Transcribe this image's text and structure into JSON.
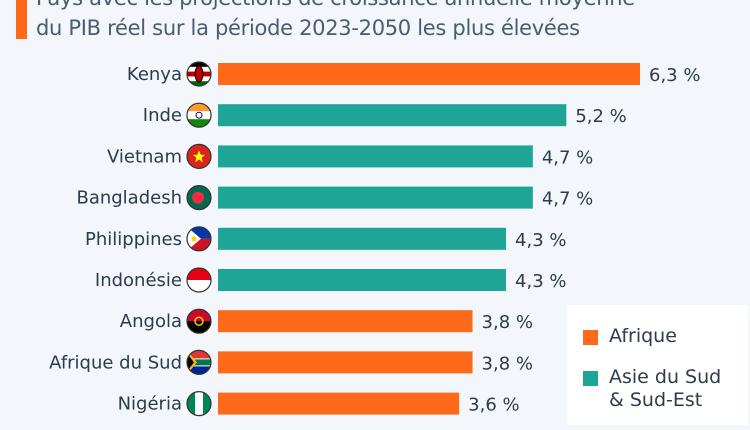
{
  "title_lines": [
    "Pays avec les projections de croissance annuelle moyenne",
    "du PIB réel sur la période 2023-2050 les plus élevées"
  ],
  "colors": {
    "Afrique": "#ff6a1a",
    "Asie du Sud & Sud-Est": "#1ea596",
    "accent": "#ff6a1a"
  },
  "legend": [
    {
      "label": "Afrique",
      "color": "#ff6a1a"
    },
    {
      "label": "Asie du Sud",
      "label2": "& Sud-Est",
      "color": "#1ea596"
    }
  ],
  "chart_data": {
    "type": "bar",
    "orientation": "horizontal",
    "title": "Pays avec les projections de croissance annuelle moyenne du PIB réel sur la période 2023-2050 les plus élevées",
    "categories": [
      "Kenya",
      "Inde",
      "Vietnam",
      "Bangladesh",
      "Philippines",
      "Indonésie",
      "Angola",
      "Afrique du Sud",
      "Nigéria"
    ],
    "values": [
      6.3,
      5.2,
      4.7,
      4.7,
      4.3,
      4.3,
      3.8,
      3.8,
      3.6
    ],
    "value_labels": [
      "6,3 %",
      "5,2 %",
      "4,7 %",
      "4,7 %",
      "4,3 %",
      "4,3 %",
      "3,8 %",
      "3,8 %",
      "3,6 %"
    ],
    "groups": [
      "Afrique",
      "Asie du Sud & Sud-Est",
      "Asie du Sud & Sud-Est",
      "Asie du Sud & Sud-Est",
      "Asie du Sud & Sud-Est",
      "Asie du Sud & Sud-Est",
      "Afrique",
      "Afrique",
      "Afrique"
    ],
    "flags": [
      "kenya-flag-icon",
      "india-flag-icon",
      "vietnam-flag-icon",
      "bangladesh-flag-icon",
      "philippines-flag-icon",
      "indonesia-flag-icon",
      "angola-flag-icon",
      "south-africa-flag-icon",
      "nigeria-flag-icon"
    ],
    "xlim": [
      0,
      6.3
    ],
    "grid": false,
    "legend_position": "bottom-right"
  }
}
